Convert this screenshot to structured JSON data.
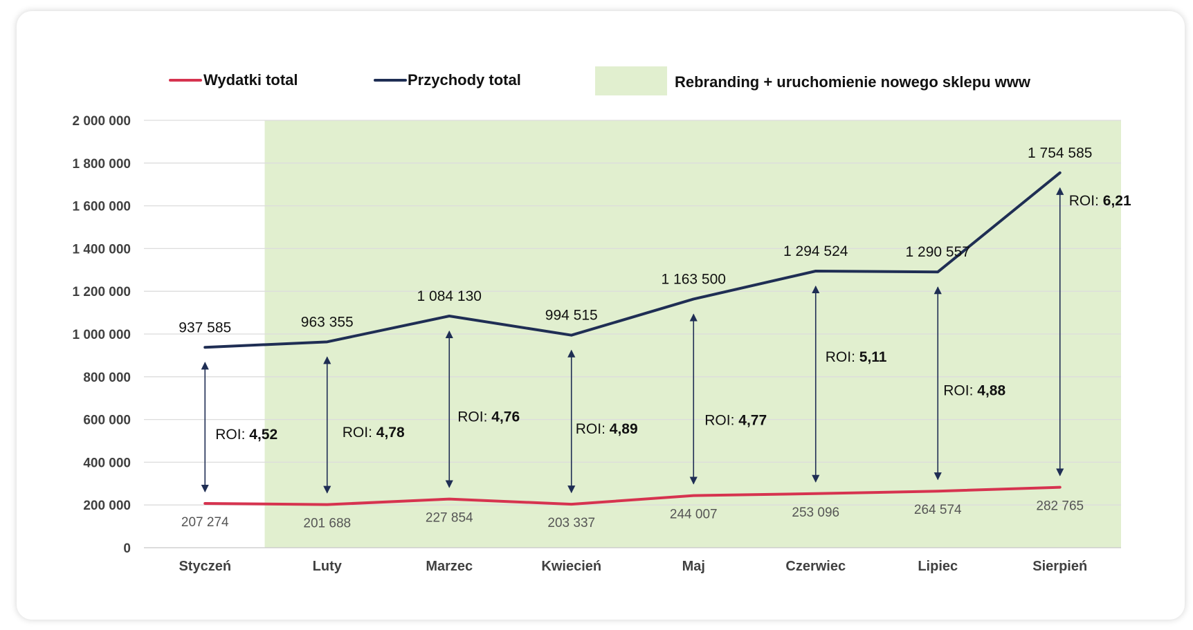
{
  "chart_data": {
    "type": "line",
    "categories": [
      "Styczeń",
      "Luty",
      "Marzec",
      "Kwiecień",
      "Maj",
      "Czerwiec",
      "Lipiec",
      "Sierpień"
    ],
    "ylim": [
      0,
      2000000
    ],
    "yticks": [
      "0",
      "200 000",
      "400 000",
      "600 000",
      "800 000",
      "1 000 000",
      "1 200 000",
      "1 400 000",
      "1 600 000",
      "1 800 000",
      "2 000 000"
    ],
    "grid": true,
    "legend_position": "top",
    "series": [
      {
        "name": "Wydatki total",
        "color": "#d6334f",
        "values": [
          207274,
          201688,
          227854,
          203337,
          244007,
          253096,
          264574,
          282765
        ],
        "labels": [
          "207 274",
          "201 688",
          "227 854",
          "203 337",
          "244 007",
          "253 096",
          "264 574",
          "282 765"
        ]
      },
      {
        "name": "Przychody total",
        "color": "#1f2e54",
        "values": [
          937585,
          963355,
          1084130,
          994515,
          1163500,
          1294524,
          1290557,
          1754585
        ],
        "labels": [
          "937 585",
          "963 355",
          "1 084 130",
          "994 515",
          "1 163 500",
          "1 294 524",
          "1 290 557",
          "1 754 585"
        ]
      }
    ],
    "highlight": {
      "label": "Rebranding + uruchomienie nowego sklepu www",
      "color": "#e1efcf",
      "from_category": "Luty",
      "to_category": "Sierpień"
    },
    "roi": {
      "prefix": "ROI:",
      "values": [
        "4,52",
        "4,78",
        "4,76",
        "4,89",
        "4,77",
        "5,11",
        "4,88",
        "6,21"
      ]
    }
  }
}
